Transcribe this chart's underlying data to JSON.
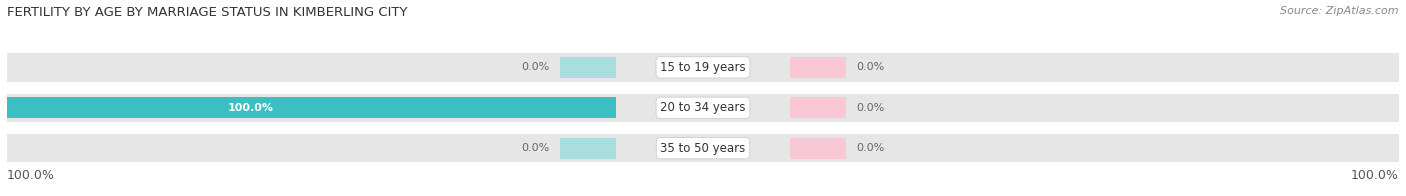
{
  "title": "FERTILITY BY AGE BY MARRIAGE STATUS IN KIMBERLING CITY",
  "source": "Source: ZipAtlas.com",
  "categories": [
    "15 to 19 years",
    "20 to 34 years",
    "35 to 50 years"
  ],
  "married_values": [
    0.0,
    100.0,
    0.0
  ],
  "unmarried_values": [
    0.0,
    0.0,
    0.0
  ],
  "married_color": "#3bbfc0",
  "unmarried_color": "#f4a0b5",
  "bar_bg_color": "#e6e6e6",
  "married_color_light": "#a8dede",
  "unmarried_color_light": "#f9c8d5",
  "title_fontsize": 9.5,
  "source_fontsize": 8,
  "label_fontsize": 8,
  "cat_fontsize": 8.5,
  "tick_fontsize": 9,
  "figsize": [
    14.06,
    1.96
  ],
  "dpi": 100
}
